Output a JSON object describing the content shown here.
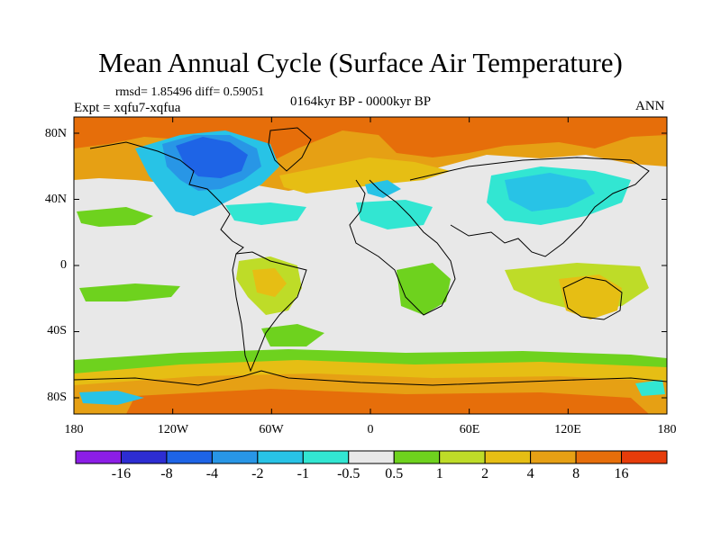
{
  "title": "Mean Annual Cycle (Surface Air Temperature)",
  "stats": "rmsd= 1.85496 diff= 0.59051",
  "experiment": "Expt = xqfu7-xqfua",
  "period": "0164kyr BP - 0000kyr BP",
  "season": "ANN",
  "y_axis_labels": [
    "80N",
    "40N",
    "0",
    "40S",
    "80S"
  ],
  "x_axis_labels": [
    "180",
    "120W",
    "60W",
    "0",
    "60E",
    "120E",
    "180"
  ],
  "colorbar": {
    "colors": [
      "#8c1ee6",
      "#2d2dd2",
      "#1e64e6",
      "#2896e6",
      "#28c3e6",
      "#32e6d2",
      "#e8e8e8",
      "#6ed21e",
      "#bedc28",
      "#e6be14",
      "#e6a014",
      "#e66e0a",
      "#e63c0a"
    ],
    "labels": [
      "-16",
      "-8",
      "-4",
      "-2",
      "-1",
      "-0.5",
      "0.5",
      "1",
      "2",
      "4",
      "8",
      "16"
    ]
  },
  "palette": {
    "neutral": "#e8e8e8",
    "warm1": "#6ed21e",
    "warm2": "#bedc28",
    "warm3": "#e6be14",
    "warm4": "#e6a014",
    "warm5": "#e66e0a",
    "cool1": "#32e6d2",
    "cool2": "#28c3e6",
    "cool3": "#2896e6",
    "cool4": "#1e64e6"
  }
}
